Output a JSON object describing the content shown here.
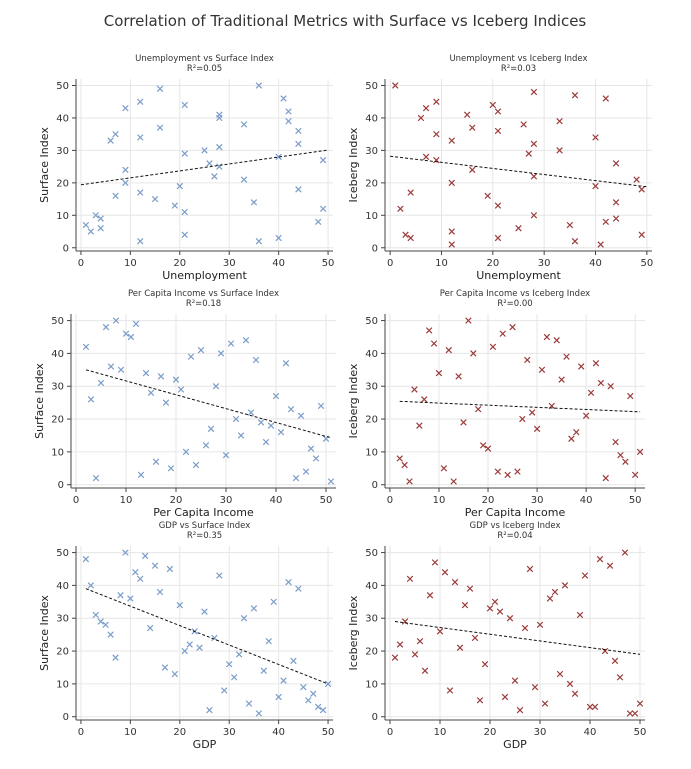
{
  "figure_title": "Correlation of Traditional Metrics with Surface vs Iceberg Indices",
  "colors": {
    "surface": "#7a9cc9",
    "iceberg": "#9b3b3b",
    "trend": "#111111",
    "grid": "#e6e6e6",
    "axis": "#444444"
  },
  "chart_data": [
    {
      "type": "scatter",
      "marker": "x",
      "title": "Unemployment vs Surface Index",
      "r2_label": "R²=0.05",
      "xlabel": "Unemployment",
      "ylabel": "Surface Index",
      "color_key": "surface",
      "xlim": [
        -1,
        51
      ],
      "ylim": [
        -1,
        52
      ],
      "xticks": [
        0,
        10,
        20,
        30,
        40,
        50
      ],
      "yticks": [
        0,
        10,
        20,
        30,
        40,
        50
      ],
      "x": [
        1,
        2,
        3,
        4,
        4,
        6,
        7,
        7,
        9,
        9,
        9,
        12,
        12,
        12,
        12,
        15,
        16,
        16,
        19,
        20,
        21,
        21,
        21,
        21,
        25,
        26,
        27,
        28,
        28,
        28,
        28,
        33,
        33,
        35,
        36,
        36,
        40,
        40,
        41,
        42,
        42,
        44,
        44,
        44,
        48,
        49,
        49
      ],
      "y": [
        7,
        5,
        10,
        6,
        9,
        33,
        35,
        16,
        20,
        24,
        43,
        45,
        34,
        17,
        2,
        15,
        37,
        49,
        13,
        19,
        11,
        4,
        29,
        44,
        30,
        26,
        22,
        25,
        40,
        41,
        31,
        38,
        21,
        14,
        2,
        50,
        3,
        28,
        46,
        42,
        39,
        36,
        32,
        18,
        8,
        27,
        12
      ],
      "trend": [
        [
          0,
          19.4
        ],
        [
          50,
          30.1
        ]
      ]
    },
    {
      "type": "scatter",
      "marker": "x",
      "title": "Unemployment vs Iceberg Index",
      "r2_label": "R²=0.03",
      "xlabel": "Unemployment",
      "ylabel": "Iceberg Index",
      "color_key": "iceberg",
      "xlim": [
        -1,
        51
      ],
      "ylim": [
        -1,
        52
      ],
      "xticks": [
        0,
        10,
        20,
        30,
        40,
        50
      ],
      "yticks": [
        0,
        10,
        20,
        30,
        40,
        50
      ],
      "x": [
        1,
        2,
        3,
        4,
        4,
        6,
        7,
        7,
        9,
        9,
        9,
        12,
        12,
        12,
        12,
        15,
        16,
        16,
        19,
        20,
        21,
        21,
        21,
        21,
        25,
        26,
        27,
        28,
        28,
        28,
        28,
        33,
        33,
        35,
        36,
        36,
        40,
        40,
        41,
        42,
        42,
        44,
        44,
        44,
        48,
        49,
        49
      ],
      "y": [
        50,
        12,
        4,
        3,
        17,
        40,
        28,
        43,
        27,
        35,
        45,
        20,
        33,
        5,
        1,
        41,
        37,
        24,
        16,
        44,
        42,
        36,
        13,
        3,
        6,
        38,
        29,
        32,
        48,
        10,
        22,
        39,
        30,
        7,
        2,
        47,
        19,
        34,
        1,
        46,
        8,
        26,
        14,
        9,
        21,
        18,
        4
      ],
      "trend": [
        [
          0,
          28.2
        ],
        [
          50,
          18.8
        ]
      ]
    },
    {
      "type": "scatter",
      "marker": "x",
      "title": "Per Capita Income vs Surface Index",
      "r2_label": "R²=0.18",
      "xlabel": "Per Capita Income",
      "ylabel": "Surface Index",
      "color_key": "surface",
      "xlim": [
        -1,
        52
      ],
      "ylim": [
        -1,
        52
      ],
      "xticks": [
        0,
        10,
        20,
        30,
        40,
        50
      ],
      "yticks": [
        0,
        10,
        20,
        30,
        40,
        50
      ],
      "x": [
        2,
        3,
        4,
        5,
        6,
        7,
        8,
        9,
        10,
        11,
        12,
        13,
        14,
        15,
        16,
        17,
        18,
        19,
        20,
        21,
        22,
        23,
        24,
        25,
        26,
        27,
        28,
        29,
        30,
        31,
        32,
        33,
        34,
        35,
        36,
        37,
        38,
        39,
        40,
        41,
        42,
        43,
        44,
        45,
        46,
        47,
        48,
        49,
        50,
        51
      ],
      "y": [
        42,
        26,
        2,
        31,
        48,
        36,
        50,
        35,
        46,
        45,
        49,
        3,
        34,
        28,
        7,
        33,
        25,
        5,
        32,
        29,
        10,
        39,
        6,
        41,
        12,
        17,
        30,
        40,
        9,
        43,
        20,
        15,
        44,
        22,
        38,
        19,
        13,
        18,
        27,
        16,
        37,
        23,
        2,
        21,
        4,
        11,
        8,
        24,
        14,
        1
      ],
      "trend": [
        [
          2,
          35.0
        ],
        [
          51,
          14.3
        ]
      ]
    },
    {
      "type": "scatter",
      "marker": "x",
      "title": "Per Capita Income vs Iceberg Index",
      "r2_label": "R²=0.00",
      "xlabel": "Per Capita Income",
      "ylabel": "Iceberg Index",
      "color_key": "iceberg",
      "xlim": [
        -1,
        52
      ],
      "ylim": [
        -1,
        52
      ],
      "xticks": [
        0,
        10,
        20,
        30,
        40,
        50
      ],
      "yticks": [
        0,
        10,
        20,
        30,
        40,
        50
      ],
      "x": [
        2,
        3,
        4,
        5,
        6,
        7,
        8,
        9,
        10,
        11,
        12,
        13,
        14,
        15,
        16,
        17,
        18,
        19,
        20,
        21,
        22,
        23,
        24,
        25,
        26,
        27,
        28,
        29,
        30,
        31,
        32,
        33,
        34,
        35,
        36,
        37,
        38,
        39,
        40,
        41,
        42,
        43,
        44,
        45,
        46,
        47,
        48,
        49,
        50,
        51
      ],
      "y": [
        8,
        6,
        1,
        29,
        18,
        26,
        47,
        43,
        34,
        5,
        41,
        1,
        33,
        19,
        50,
        40,
        23,
        12,
        11,
        42,
        4,
        46,
        3,
        48,
        4,
        20,
        38,
        22,
        17,
        35,
        45,
        24,
        44,
        32,
        39,
        14,
        16,
        36,
        21,
        28,
        37,
        31,
        2,
        30,
        13,
        9,
        7,
        27,
        3,
        10
      ],
      "trend": [
        [
          2,
          25.4
        ],
        [
          51,
          22.2
        ]
      ]
    },
    {
      "type": "scatter",
      "marker": "x",
      "title": "GDP vs Surface Index",
      "r2_label": "R²=0.35",
      "xlabel": "GDP",
      "ylabel": "Surface Index",
      "color_key": "surface",
      "xlim": [
        -1,
        51
      ],
      "ylim": [
        -1,
        52
      ],
      "xticks": [
        0,
        10,
        20,
        30,
        40,
        50
      ],
      "yticks": [
        0,
        10,
        20,
        30,
        40,
        50
      ],
      "x": [
        1,
        2,
        3,
        4,
        5,
        6,
        7,
        8,
        9,
        10,
        11,
        12,
        13,
        14,
        15,
        16,
        17,
        18,
        19,
        20,
        21,
        22,
        23,
        24,
        25,
        26,
        27,
        28,
        29,
        30,
        31,
        32,
        33,
        34,
        35,
        36,
        37,
        38,
        39,
        40,
        41,
        42,
        43,
        44,
        45,
        46,
        47,
        48,
        49,
        50
      ],
      "y": [
        48,
        40,
        31,
        29,
        28,
        25,
        18,
        37,
        50,
        36,
        44,
        42,
        49,
        27,
        46,
        38,
        15,
        45,
        13,
        34,
        20,
        22,
        26,
        21,
        32,
        2,
        24,
        43,
        8,
        16,
        12,
        19,
        30,
        4,
        33,
        1,
        14,
        23,
        35,
        6,
        11,
        41,
        17,
        39,
        9,
        5,
        7,
        3,
        2,
        10
      ],
      "trend": [
        [
          1,
          39.0
        ],
        [
          50,
          10.0
        ]
      ]
    },
    {
      "type": "scatter",
      "marker": "x",
      "title": "GDP vs Iceberg Index",
      "r2_label": "R²=0.04",
      "xlabel": "GDP",
      "ylabel": "Iceberg Index",
      "color_key": "iceberg",
      "xlim": [
        -1,
        51
      ],
      "ylim": [
        -1,
        52
      ],
      "xticks": [
        0,
        10,
        20,
        30,
        40,
        50
      ],
      "yticks": [
        0,
        10,
        20,
        30,
        40,
        50
      ],
      "x": [
        1,
        2,
        3,
        4,
        5,
        6,
        7,
        8,
        9,
        10,
        11,
        12,
        13,
        14,
        15,
        16,
        17,
        18,
        19,
        20,
        21,
        22,
        23,
        24,
        25,
        26,
        27,
        28,
        29,
        30,
        31,
        32,
        33,
        34,
        35,
        36,
        37,
        38,
        39,
        40,
        41,
        42,
        43,
        44,
        45,
        46,
        47,
        48,
        49,
        50
      ],
      "y": [
        18,
        22,
        29,
        42,
        19,
        23,
        14,
        37,
        47,
        26,
        44,
        8,
        41,
        21,
        34,
        39,
        24,
        5,
        16,
        33,
        35,
        32,
        6,
        30,
        11,
        2,
        27,
        45,
        9,
        28,
        4,
        36,
        38,
        13,
        40,
        10,
        7,
        31,
        43,
        3,
        3,
        48,
        20,
        46,
        17,
        12,
        50,
        1,
        1,
        4
      ],
      "trend": [
        [
          1,
          29.0
        ],
        [
          50,
          19.0
        ]
      ]
    }
  ]
}
